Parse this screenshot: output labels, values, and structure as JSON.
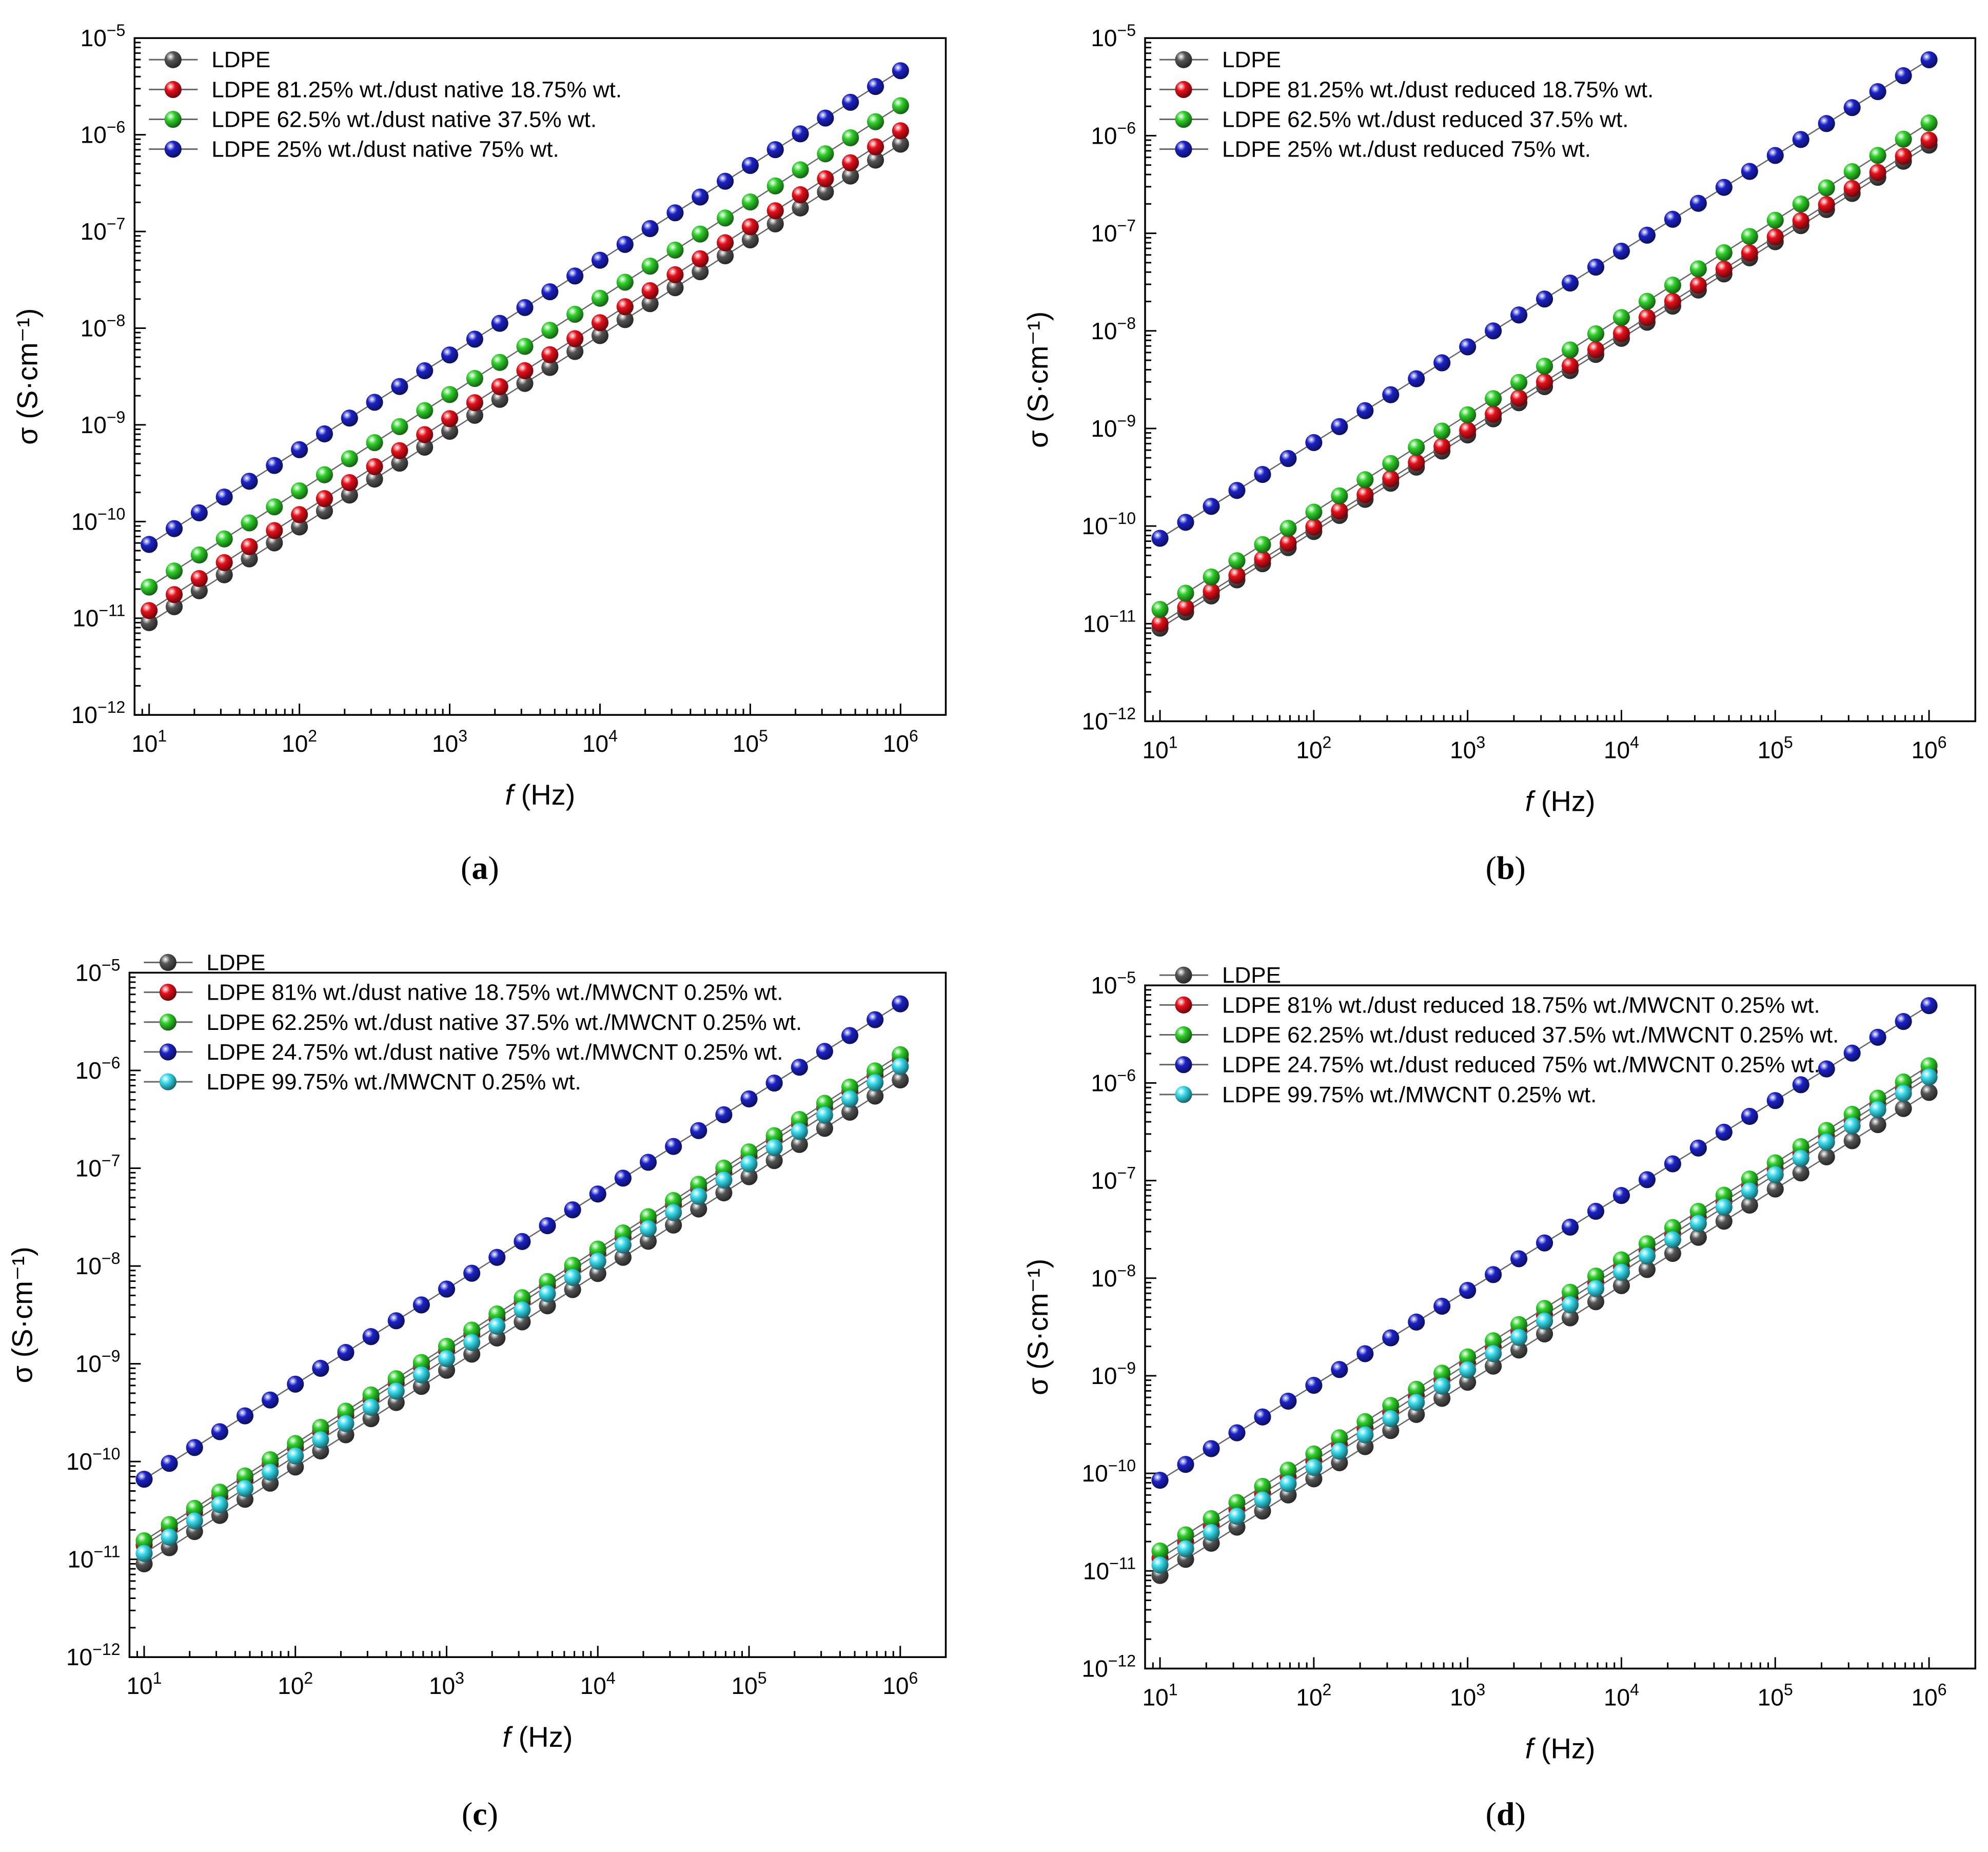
{
  "figure": {
    "panel_captions": [
      "a",
      "b",
      "c",
      "d"
    ]
  },
  "colors": {
    "LDPE": "#555555",
    "red": "#e8101a",
    "green": "#2fd12a",
    "blue": "#1b22c8",
    "cyan": "#36dcec",
    "line": "#666666"
  },
  "chart_data": [
    {
      "type": "scatter",
      "panel": "a",
      "caption": "(a)",
      "xlabel_italic": "f",
      "xlabel_rest": " (Hz)",
      "ylabel": "σ (S·cm⁻¹)",
      "xscale": "log",
      "yscale": "log",
      "xlim": [
        8,
        2000000
      ],
      "ylim": [
        1e-12,
        1e-05
      ],
      "x_ticks": [
        {
          "base": "10",
          "exp": "1"
        },
        {
          "base": "10",
          "exp": "2"
        },
        {
          "base": "10",
          "exp": "3"
        },
        {
          "base": "10",
          "exp": "4"
        },
        {
          "base": "10",
          "exp": "5"
        },
        {
          "base": "10",
          "exp": "6"
        }
      ],
      "y_ticks": [
        {
          "base": "10",
          "exp": "−12"
        },
        {
          "base": "10",
          "exp": "−11"
        },
        {
          "base": "10",
          "exp": "−10"
        },
        {
          "base": "10",
          "exp": "−9"
        },
        {
          "base": "10",
          "exp": "−8"
        },
        {
          "base": "10",
          "exp": "−7"
        },
        {
          "base": "10",
          "exp": "−6"
        },
        {
          "base": "10",
          "exp": "−5"
        }
      ],
      "legend_position": "top-left",
      "x_range_hz": [
        10,
        1000000
      ],
      "points_per_series": 31,
      "series": [
        {
          "name": "LDPE",
          "color_key": "LDPE",
          "sigma_at_10hz": 9e-12,
          "sigma_at_1mhz": 8e-07
        },
        {
          "name": "LDPE 81.25% wt./dust native 18.75% wt.",
          "color_key": "red",
          "sigma_at_10hz": 1.2e-11,
          "sigma_at_1mhz": 1.1e-06
        },
        {
          "name": "LDPE 62.5% wt./dust native 37.5% wt.",
          "color_key": "green",
          "sigma_at_10hz": 2.1e-11,
          "sigma_at_1mhz": 2e-06
        },
        {
          "name": "LDPE 25% wt./dust native 75% wt.",
          "color_key": "blue",
          "sigma_at_10hz": 5.8e-11,
          "sigma_at_1mhz": 4.6e-06
        }
      ]
    },
    {
      "type": "scatter",
      "panel": "b",
      "caption": "(b)",
      "xlabel_italic": "f",
      "xlabel_rest": " (Hz)",
      "ylabel": "σ (S·cm⁻¹)",
      "xscale": "log",
      "yscale": "log",
      "xlim": [
        8,
        2000000
      ],
      "ylim": [
        1e-12,
        1e-05
      ],
      "x_ticks": [
        {
          "base": "10",
          "exp": "1"
        },
        {
          "base": "10",
          "exp": "2"
        },
        {
          "base": "10",
          "exp": "3"
        },
        {
          "base": "10",
          "exp": "4"
        },
        {
          "base": "10",
          "exp": "5"
        },
        {
          "base": "10",
          "exp": "6"
        }
      ],
      "y_ticks": [
        {
          "base": "10",
          "exp": "−12"
        },
        {
          "base": "10",
          "exp": "−11"
        },
        {
          "base": "10",
          "exp": "−10"
        },
        {
          "base": "10",
          "exp": "−9"
        },
        {
          "base": "10",
          "exp": "−8"
        },
        {
          "base": "10",
          "exp": "−7"
        },
        {
          "base": "10",
          "exp": "−6"
        },
        {
          "base": "10",
          "exp": "−5"
        }
      ],
      "legend_position": "top-left",
      "x_range_hz": [
        10,
        1000000
      ],
      "points_per_series": 31,
      "series": [
        {
          "name": "LDPE",
          "color_key": "LDPE",
          "sigma_at_10hz": 9e-12,
          "sigma_at_1mhz": 8e-07
        },
        {
          "name": "LDPE 81.25% wt./dust reduced 18.75% wt.",
          "color_key": "red",
          "sigma_at_10hz": 1e-11,
          "sigma_at_1mhz": 9e-07
        },
        {
          "name": "LDPE 62.5% wt./dust reduced 37.5% wt.",
          "color_key": "green",
          "sigma_at_10hz": 1.4e-11,
          "sigma_at_1mhz": 1.35e-06
        },
        {
          "name": "LDPE 25% wt./dust reduced 75% wt.",
          "color_key": "blue",
          "sigma_at_10hz": 7.5e-11,
          "sigma_at_1mhz": 6e-06
        }
      ]
    },
    {
      "type": "scatter",
      "panel": "c",
      "caption": "(c)",
      "xlabel_italic": "f",
      "xlabel_rest": " (Hz)",
      "ylabel": "σ (S·cm⁻¹)",
      "xscale": "log",
      "yscale": "log",
      "xlim": [
        8,
        2000000
      ],
      "ylim": [
        1e-12,
        1e-05
      ],
      "x_ticks": [
        {
          "base": "10",
          "exp": "1"
        },
        {
          "base": "10",
          "exp": "2"
        },
        {
          "base": "10",
          "exp": "3"
        },
        {
          "base": "10",
          "exp": "4"
        },
        {
          "base": "10",
          "exp": "5"
        },
        {
          "base": "10",
          "exp": "6"
        }
      ],
      "y_ticks": [
        {
          "base": "10",
          "exp": "−12"
        },
        {
          "base": "10",
          "exp": "−11"
        },
        {
          "base": "10",
          "exp": "−10"
        },
        {
          "base": "10",
          "exp": "−9"
        },
        {
          "base": "10",
          "exp": "−8"
        },
        {
          "base": "10",
          "exp": "−7"
        },
        {
          "base": "10",
          "exp": "−6"
        },
        {
          "base": "10",
          "exp": "−5"
        }
      ],
      "legend_position": "top-left",
      "x_range_hz": [
        10,
        1000000
      ],
      "points_per_series": 31,
      "series": [
        {
          "name": "LDPE",
          "color_key": "LDPE",
          "sigma_at_10hz": 9e-12,
          "sigma_at_1mhz": 8e-07
        },
        {
          "name": "LDPE 81% wt./dust native 18.75% wt./MWCNT 0.25% wt.",
          "color_key": "red",
          "sigma_at_10hz": 1.4e-11,
          "sigma_at_1mhz": 1.3e-06
        },
        {
          "name": "LDPE 62.25% wt./dust native 37.5% wt./MWCNT 0.25% wt.",
          "color_key": "green",
          "sigma_at_10hz": 1.55e-11,
          "sigma_at_1mhz": 1.45e-06
        },
        {
          "name": "LDPE 24.75% wt./dust native 75% wt./MWCNT 0.25% wt.",
          "color_key": "blue",
          "sigma_at_10hz": 6.6e-11,
          "sigma_at_1mhz": 4.8e-06
        },
        {
          "name": "LDPE 99.75% wt./MWCNT 0.25% wt.",
          "color_key": "cyan",
          "sigma_at_10hz": 1.15e-11,
          "sigma_at_1mhz": 1.1e-06
        }
      ]
    },
    {
      "type": "scatter",
      "panel": "d",
      "caption": "(d)",
      "xlabel_italic": "f",
      "xlabel_rest": " (Hz)",
      "ylabel": "σ (S·cm⁻¹)",
      "xscale": "log",
      "yscale": "log",
      "xlim": [
        8,
        2000000
      ],
      "ylim": [
        1e-12,
        1e-05
      ],
      "x_ticks": [
        {
          "base": "10",
          "exp": "1"
        },
        {
          "base": "10",
          "exp": "2"
        },
        {
          "base": "10",
          "exp": "3"
        },
        {
          "base": "10",
          "exp": "4"
        },
        {
          "base": "10",
          "exp": "5"
        },
        {
          "base": "10",
          "exp": "6"
        }
      ],
      "y_ticks": [
        {
          "base": "10",
          "exp": "−12"
        },
        {
          "base": "10",
          "exp": "−11"
        },
        {
          "base": "10",
          "exp": "−10"
        },
        {
          "base": "10",
          "exp": "−9"
        },
        {
          "base": "10",
          "exp": "−8"
        },
        {
          "base": "10",
          "exp": "−7"
        },
        {
          "base": "10",
          "exp": "−6"
        },
        {
          "base": "10",
          "exp": "−5"
        }
      ],
      "legend_position": "top-left",
      "x_range_hz": [
        10,
        1000000
      ],
      "points_per_series": 31,
      "series": [
        {
          "name": "LDPE",
          "color_key": "LDPE",
          "sigma_at_10hz": 9e-12,
          "sigma_at_1mhz": 8e-07
        },
        {
          "name": "LDPE 81% wt./dust reduced 18.75% wt./MWCNT 0.25% wt.",
          "color_key": "red",
          "sigma_at_10hz": 1.35e-11,
          "sigma_at_1mhz": 1.3e-06
        },
        {
          "name": "LDPE 62.25% wt./dust reduced 37.5% wt./MWCNT 0.25% wt.",
          "color_key": "green",
          "sigma_at_10hz": 1.6e-11,
          "sigma_at_1mhz": 1.5e-06
        },
        {
          "name": "LDPE 24.75% wt./dust reduced 75% wt./MWCNT 0.25% wt.",
          "color_key": "blue",
          "sigma_at_10hz": 8.5e-11,
          "sigma_at_1mhz": 6.2e-06
        },
        {
          "name": "LDPE 99.75% wt./MWCNT 0.25% wt.",
          "color_key": "cyan",
          "sigma_at_10hz": 1.15e-11,
          "sigma_at_1mhz": 1.15e-06
        }
      ]
    }
  ]
}
